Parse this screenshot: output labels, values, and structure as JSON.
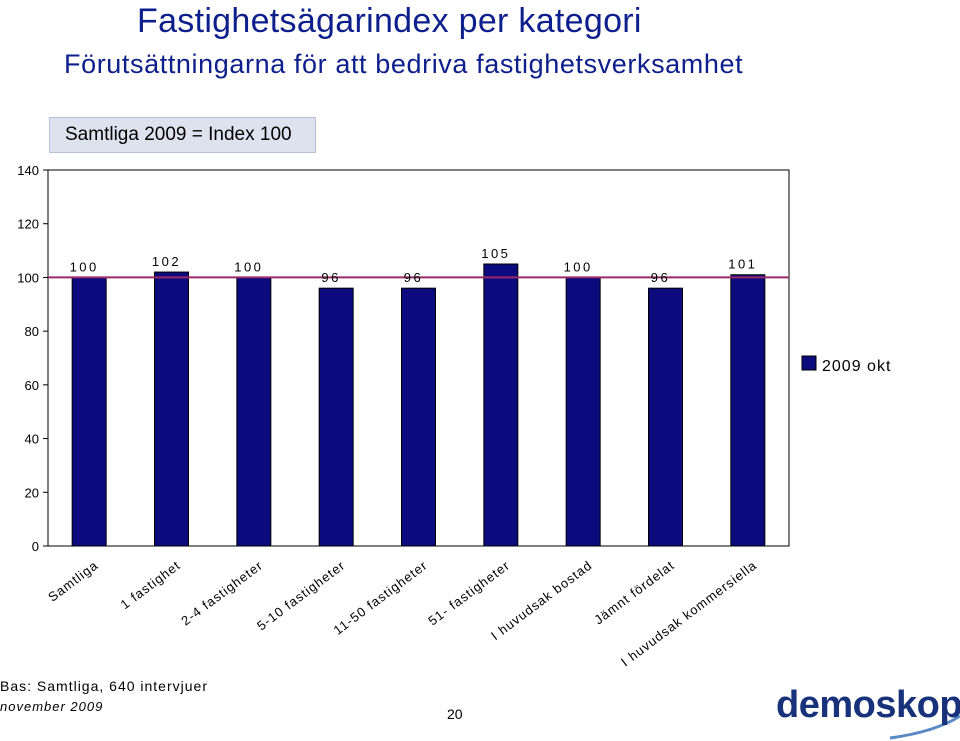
{
  "header": {
    "title": "Fastighetsägarindex per kategori",
    "subtitle": "Förutsättningarna för att bedriva fastighetsverksamhet",
    "index_note": "Samtliga 2009 = Index 100"
  },
  "footer": {
    "basis": "Bas: Samtliga, 640 intervjuer",
    "date": "november 2009",
    "page_number": "20",
    "logo_text": "demoskop"
  },
  "colors": {
    "bar_fill": "#0b0b7d",
    "bar_stroke": "#000000",
    "reference_line": "#9a2a6a",
    "title": "#0d1f8c"
  },
  "chart_data": {
    "type": "bar",
    "categories": [
      "Samtliga",
      "1 fastighet",
      "2-4 fastigheter",
      "5-10 fastigheter",
      "11-50 fastigheter",
      "51- fastigheter",
      "I huvudsak bostad",
      "Jämnt fördelat",
      "I huvudsak kommersiella"
    ],
    "series": [
      {
        "name": "2009 okt",
        "values": [
          100,
          102,
          100,
          96,
          96,
          105,
          100,
          96,
          101
        ]
      }
    ],
    "data_labels": [
      "100",
      "102",
      "100",
      "96",
      "96",
      "105",
      "100",
      "96",
      "101"
    ],
    "reference_line": 100,
    "ylim": [
      0,
      140
    ],
    "yticks": [
      0,
      20,
      40,
      60,
      80,
      100,
      120,
      140
    ],
    "grid": false,
    "legend": "right"
  }
}
